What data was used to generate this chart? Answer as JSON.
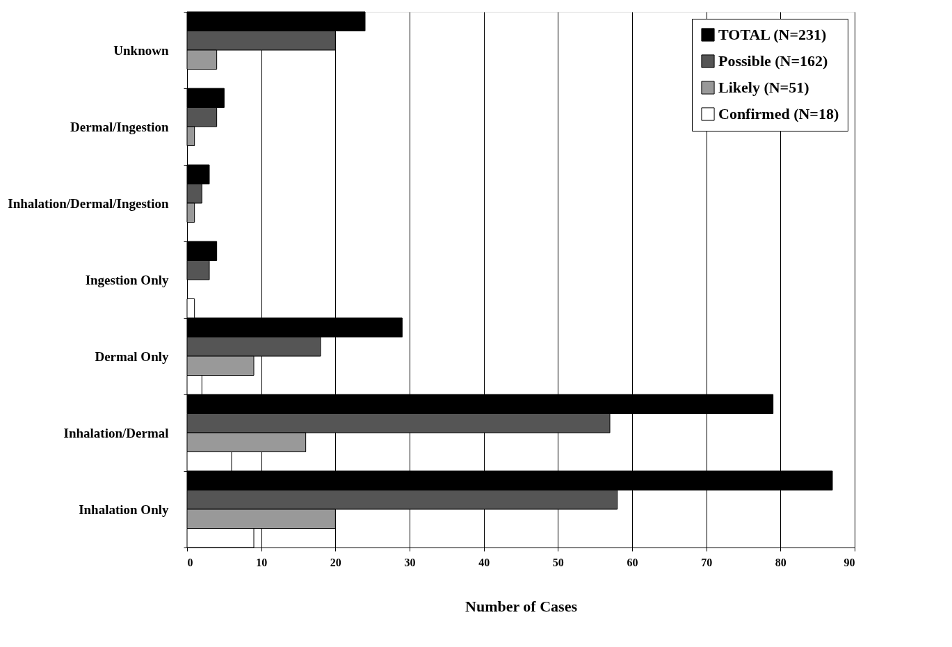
{
  "chart_data": {
    "type": "bar",
    "orientation": "horizontal",
    "xlabel": "Number of Cases",
    "categories": [
      "Unknown",
      "Dermal/Ingestion",
      "Inhalation/Dermal/Ingestion",
      "Ingestion Only",
      "Dermal Only",
      "Inhalation/Dermal",
      "Inhalation Only"
    ],
    "series": [
      {
        "name": "TOTAL (N=231)",
        "color": "#000000",
        "values": [
          24,
          5,
          3,
          4,
          29,
          79,
          87
        ]
      },
      {
        "name": "Possible (N=162)",
        "color": "#555555",
        "values": [
          20,
          4,
          2,
          3,
          18,
          57,
          58
        ]
      },
      {
        "name": "Likely (N=51)",
        "color": "#999999",
        "values": [
          4,
          1,
          1,
          0,
          9,
          16,
          20
        ]
      },
      {
        "name": "Confirmed (N=18)",
        "color": "#ffffff",
        "values": [
          0,
          0,
          0,
          1,
          2,
          6,
          9
        ]
      }
    ],
    "xlim": [
      0,
      90
    ],
    "xticks": [
      0,
      10,
      20,
      30,
      40,
      50,
      60,
      70,
      80,
      90
    ],
    "grid": "x",
    "legend": "top right"
  }
}
